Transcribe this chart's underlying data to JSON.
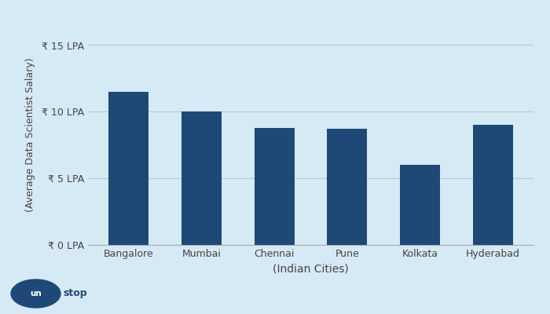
{
  "categories": [
    "Bangalore",
    "Mumbai",
    "Chennai",
    "Pune",
    "Kolkata",
    "Hyderabad"
  ],
  "values": [
    11.5,
    10.0,
    8.8,
    8.7,
    6.0,
    9.0
  ],
  "bar_color": "#1e4976",
  "background_color": "#d6eaf5",
  "ylabel": "(Average Data Scientist Salary)",
  "xlabel": "(Indian Cities)",
  "ytick_labels": [
    "₹ 0 LPA",
    "₹ 5 LPA",
    "₹ 10 LPA",
    "₹ 15 LPA"
  ],
  "ytick_values": [
    0,
    5,
    10,
    15
  ],
  "ylim": [
    0,
    16.5
  ],
  "grid_color": "#b0c8db",
  "bar_width": 0.55,
  "logo_text": "unstop",
  "logo_bg": "#1e4976",
  "logo_text_color": "#ffffff"
}
